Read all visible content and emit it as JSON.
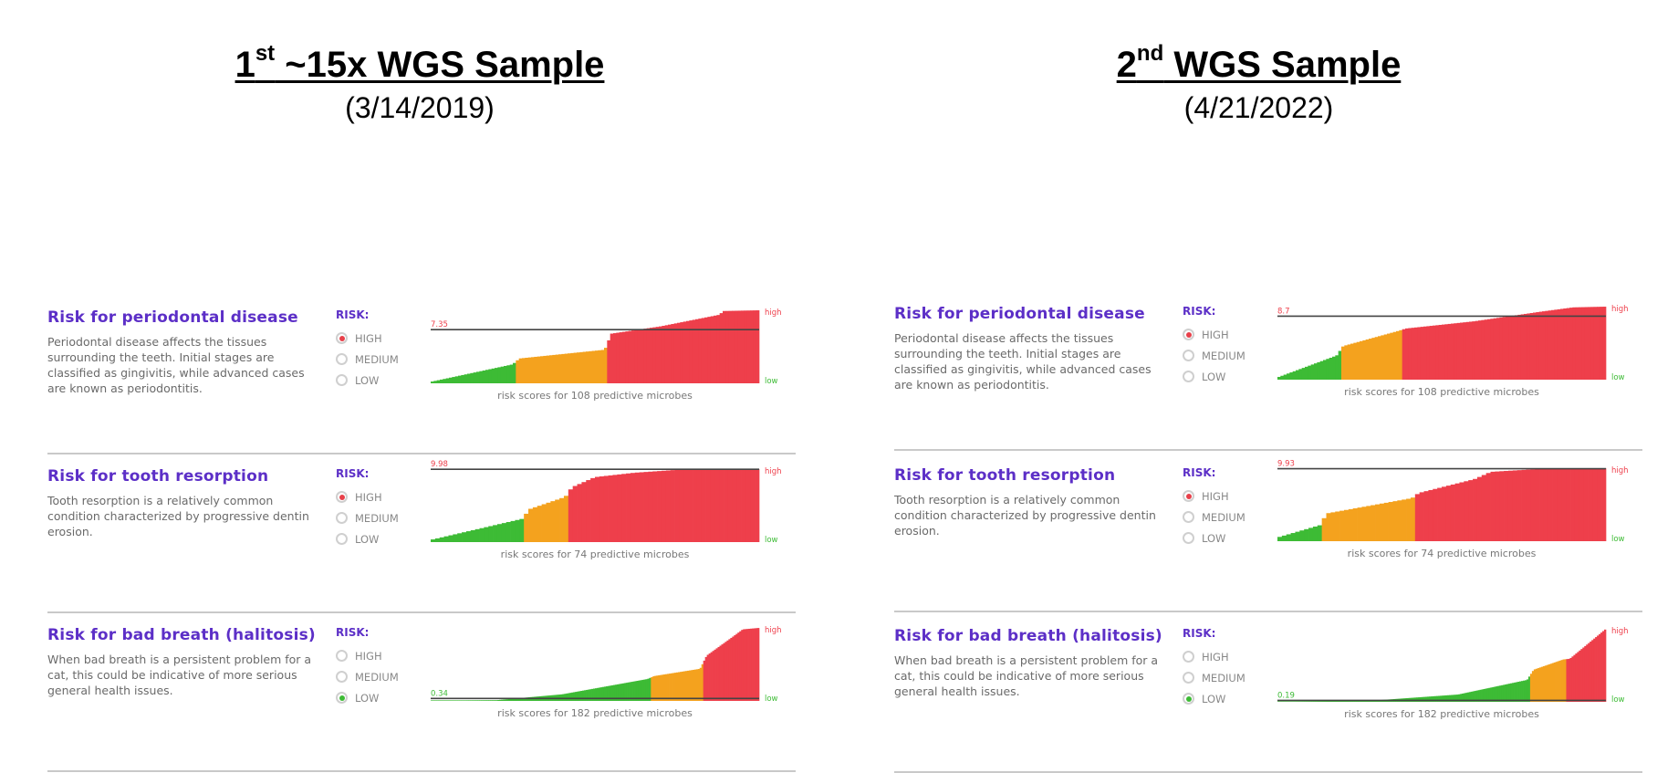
{
  "headers": [
    {
      "title_prefix": "1",
      "title_sup": "st",
      "title_rest": " ~15x WGS Sample",
      "date": "(3/14/2019)"
    },
    {
      "title_prefix": "2",
      "title_sup": "nd",
      "title_rest": " WGS Sample",
      "date": "(4/21/2022)"
    }
  ],
  "labels": {
    "risk": "RISK:",
    "high": "HIGH",
    "medium": "MEDIUM",
    "low": "LOW",
    "axis_high": "high",
    "axis_low": "low"
  },
  "sections": [
    {
      "title": "Risk for periodontal disease",
      "description": "Periodontal disease affects the tissues surrounding the teeth. Initial stages are classified as gingivitis, while advanced cases are known as periodontitis.",
      "microbe_caption": "risk scores for 108 predictive microbes"
    },
    {
      "title": "Risk for tooth resorption",
      "description": "Tooth resorption is a relatively common condition characterized by progressive dentin erosion.",
      "microbe_caption": "risk scores for 74 predictive microbes"
    },
    {
      "title": "Risk for bad breath (halitosis)",
      "description": "When bad breath is a persistent problem for a cat, this could be indicative of more serious general health issues.",
      "microbe_caption": "risk scores for 182 predictive microbes"
    }
  ],
  "colors": {
    "green": "#3dbb35",
    "orange": "#f4a21e",
    "red": "#ee3f4b",
    "line": "#444444",
    "purple": "#5c2fc7"
  },
  "chart_data": [
    {
      "type": "area",
      "sample": 1,
      "section": 0,
      "risk_level": "HIGH",
      "score_label": "7.35",
      "score": 7.35,
      "n": 108,
      "ylim": [
        0,
        10
      ],
      "zones": [
        {
          "color": "green",
          "end": 0.26
        },
        {
          "color": "orange",
          "end": 0.54
        },
        {
          "color": "red",
          "end": 1.0
        }
      ],
      "curve": [
        [
          0,
          0.2
        ],
        [
          0.25,
          2.6
        ],
        [
          0.27,
          3.4
        ],
        [
          0.53,
          4.6
        ],
        [
          0.55,
          6.8
        ],
        [
          0.7,
          7.8
        ],
        [
          0.88,
          9.4
        ],
        [
          0.89,
          9.9
        ],
        [
          1.0,
          10
        ]
      ]
    },
    {
      "type": "area",
      "sample": 1,
      "section": 1,
      "risk_level": "HIGH",
      "score_label": "9.98",
      "score": 9.98,
      "n": 74,
      "ylim": [
        0,
        10
      ],
      "zones": [
        {
          "color": "green",
          "end": 0.29
        },
        {
          "color": "orange",
          "end": 0.42
        },
        {
          "color": "red",
          "end": 1.0
        }
      ],
      "curve": [
        [
          0,
          0.3
        ],
        [
          0.28,
          3.2
        ],
        [
          0.3,
          4.5
        ],
        [
          0.41,
          6.2
        ],
        [
          0.43,
          7.5
        ],
        [
          0.5,
          8.9
        ],
        [
          0.62,
          9.5
        ],
        [
          0.75,
          9.9
        ],
        [
          1.0,
          10
        ]
      ]
    },
    {
      "type": "area",
      "sample": 1,
      "section": 2,
      "risk_level": "LOW",
      "score_label": "0.34",
      "score": 0.34,
      "n": 182,
      "ylim": [
        0,
        10
      ],
      "zones": [
        {
          "color": "green",
          "end": 0.67
        },
        {
          "color": "orange",
          "end": 0.83
        },
        {
          "color": "red",
          "end": 1.0
        }
      ],
      "curve": [
        [
          0,
          0.05
        ],
        [
          0.2,
          0.1
        ],
        [
          0.4,
          0.9
        ],
        [
          0.66,
          3.0
        ],
        [
          0.68,
          3.4
        ],
        [
          0.82,
          4.4
        ],
        [
          0.84,
          6.2
        ],
        [
          0.92,
          8.8
        ],
        [
          0.95,
          9.8
        ],
        [
          1.0,
          10
        ]
      ]
    },
    {
      "type": "area",
      "sample": 2,
      "section": 0,
      "risk_level": "HIGH",
      "score_label": "8.7",
      "score": 8.7,
      "n": 108,
      "ylim": [
        0,
        10
      ],
      "zones": [
        {
          "color": "green",
          "end": 0.19
        },
        {
          "color": "orange",
          "end": 0.38
        },
        {
          "color": "red",
          "end": 1.0
        }
      ],
      "curve": [
        [
          0,
          0.3
        ],
        [
          0.18,
          3.3
        ],
        [
          0.2,
          4.6
        ],
        [
          0.37,
          6.7
        ],
        [
          0.39,
          7.0
        ],
        [
          0.6,
          8.0
        ],
        [
          0.8,
          9.3
        ],
        [
          0.9,
          9.9
        ],
        [
          1.0,
          10
        ]
      ]
    },
    {
      "type": "area",
      "sample": 2,
      "section": 1,
      "risk_level": "HIGH",
      "score_label": "9.93",
      "score": 9.93,
      "n": 74,
      "ylim": [
        0,
        10
      ],
      "zones": [
        {
          "color": "green",
          "end": 0.14
        },
        {
          "color": "orange",
          "end": 0.42
        },
        {
          "color": "red",
          "end": 1.0
        }
      ],
      "curve": [
        [
          0,
          0.5
        ],
        [
          0.13,
          2.2
        ],
        [
          0.15,
          3.8
        ],
        [
          0.41,
          5.9
        ],
        [
          0.43,
          6.6
        ],
        [
          0.6,
          8.5
        ],
        [
          0.65,
          9.5
        ],
        [
          0.8,
          9.9
        ],
        [
          1.0,
          10
        ]
      ]
    },
    {
      "type": "area",
      "sample": 2,
      "section": 2,
      "risk_level": "LOW",
      "score_label": "0.19",
      "score": 0.19,
      "n": 182,
      "ylim": [
        0,
        10
      ],
      "zones": [
        {
          "color": "green",
          "end": 0.77
        },
        {
          "color": "orange",
          "end": 0.88
        },
        {
          "color": "red",
          "end": 1.0
        }
      ],
      "curve": [
        [
          0,
          0.05
        ],
        [
          0.3,
          0.2
        ],
        [
          0.55,
          1.0
        ],
        [
          0.76,
          3.0
        ],
        [
          0.78,
          4.4
        ],
        [
          0.87,
          5.8
        ],
        [
          0.89,
          5.9
        ],
        [
          0.96,
          8.5
        ],
        [
          1.0,
          10
        ]
      ]
    }
  ]
}
